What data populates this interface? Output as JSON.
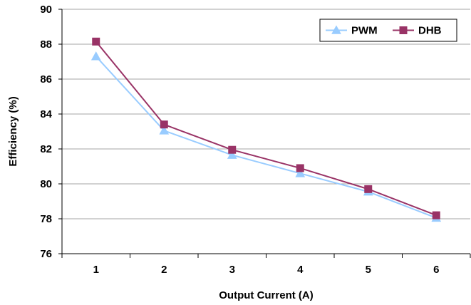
{
  "chart_data": {
    "type": "line",
    "title": "",
    "xlabel": "Output Current (A)",
    "ylabel": "Efficiency (%)",
    "x": [
      1,
      2,
      3,
      4,
      5,
      6
    ],
    "x_tick_labels": [
      "1",
      "2",
      "3",
      "4",
      "5",
      "6"
    ],
    "y_tick_labels": [
      "76",
      "78",
      "80",
      "82",
      "84",
      "86",
      "88",
      "90"
    ],
    "ylim": [
      76,
      90
    ],
    "y_ticks": [
      76,
      78,
      80,
      82,
      84,
      86,
      88,
      90
    ],
    "grid": "horizontal",
    "legend_position": "top-right",
    "series": [
      {
        "name": "PWM",
        "values": [
          87.3,
          83.05,
          81.65,
          80.6,
          79.55,
          78.05
        ],
        "color": "#99ccff",
        "marker": "triangle"
      },
      {
        "name": "DHB",
        "values": [
          88.15,
          83.4,
          81.95,
          80.9,
          79.7,
          78.2
        ],
        "color": "#993366",
        "marker": "square"
      }
    ]
  }
}
